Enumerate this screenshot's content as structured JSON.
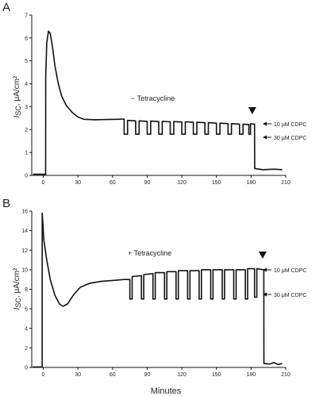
{
  "x_axis_title": "Minutes",
  "chart_data": [
    {
      "type": "line",
      "panel": "A",
      "annotation": "− Tetracycline",
      "ylabel_main": "I",
      "ylabel_sub": "SC",
      "ylabel_units": ", μA/cm²",
      "x_ticks": [
        0,
        30,
        60,
        90,
        120,
        150,
        180,
        210
      ],
      "y_ticks": [
        0,
        1,
        2,
        3,
        4,
        5,
        6,
        7
      ],
      "xlim": [
        -10,
        210
      ],
      "ylim": [
        0,
        7
      ],
      "marker_x": 181,
      "arrows": [
        {
          "label": "10 μM CDPC",
          "y": 2.25
        },
        {
          "label": "30 μM CDPC",
          "y": 1.7
        }
      ],
      "series": [
        {
          "values": [
            [
              -9,
              0.05
            ],
            [
              2,
              0.05
            ],
            [
              2.1,
              4.3
            ],
            [
              3,
              5.8
            ],
            [
              4.5,
              6.3
            ],
            [
              6,
              6.2
            ],
            [
              8,
              5.6
            ],
            [
              10,
              4.8
            ],
            [
              13,
              4.0
            ],
            [
              16,
              3.45
            ],
            [
              20,
              3.05
            ],
            [
              25,
              2.75
            ],
            [
              30,
              2.55
            ],
            [
              35,
              2.45
            ],
            [
              45,
              2.43
            ],
            [
              55,
              2.44
            ],
            [
              65,
              2.45
            ],
            [
              70,
              2.46
            ],
            [
              70,
              1.8
            ],
            [
              73,
              1.8
            ],
            [
              73,
              2.4
            ],
            [
              80,
              2.38
            ],
            [
              80,
              1.8
            ],
            [
              83,
              1.8
            ],
            [
              83,
              2.38
            ],
            [
              90,
              2.36
            ],
            [
              90,
              1.8
            ],
            [
              93,
              1.8
            ],
            [
              93,
              2.37
            ],
            [
              100,
              2.35
            ],
            [
              100,
              1.8
            ],
            [
              103,
              1.8
            ],
            [
              103,
              2.36
            ],
            [
              110,
              2.34
            ],
            [
              110,
              1.8
            ],
            [
              113,
              1.8
            ],
            [
              113,
              2.35
            ],
            [
              120,
              2.33
            ],
            [
              120,
              1.8
            ],
            [
              123,
              1.8
            ],
            [
              123,
              2.34
            ],
            [
              130,
              2.32
            ],
            [
              130,
              1.8
            ],
            [
              133,
              1.8
            ],
            [
              133,
              2.32
            ],
            [
              140,
              2.3
            ],
            [
              140,
              1.8
            ],
            [
              143,
              1.8
            ],
            [
              143,
              2.3
            ],
            [
              150,
              2.28
            ],
            [
              150,
              1.8
            ],
            [
              153,
              1.8
            ],
            [
              153,
              2.28
            ],
            [
              160,
              2.26
            ],
            [
              160,
              1.8
            ],
            [
              163,
              1.8
            ],
            [
              163,
              2.26
            ],
            [
              170,
              2.24
            ],
            [
              170,
              1.8
            ],
            [
              173,
              1.8
            ],
            [
              173,
              2.24
            ],
            [
              178,
              2.22
            ],
            [
              178,
              1.8
            ],
            [
              179.5,
              1.8
            ],
            [
              179.5,
              2.25
            ],
            [
              183,
              2.24
            ],
            [
              183.1,
              0.3
            ],
            [
              190,
              0.25
            ],
            [
              200,
              0.27
            ],
            [
              207,
              0.25
            ]
          ]
        }
      ]
    },
    {
      "type": "line",
      "panel": "B",
      "annotation": "+ Tetracycline",
      "ylabel_main": "I",
      "ylabel_sub": "SC",
      "ylabel_units": ", μA/cm²",
      "x_ticks": [
        0,
        30,
        60,
        90,
        120,
        150,
        180,
        210
      ],
      "y_ticks": [
        0,
        2,
        4,
        6,
        8,
        10,
        12,
        14,
        16
      ],
      "xlim": [
        -10,
        210
      ],
      "ylim": [
        0,
        16
      ],
      "marker_x": 190,
      "arrows": [
        {
          "label": "10 μM CDPC",
          "y": 10.0
        },
        {
          "label": "30 μM CDPC",
          "y": 7.2
        }
      ],
      "series": [
        {
          "values": [
            [
              -9,
              0.05
            ],
            [
              -1,
              0.05
            ],
            [
              -0.9,
              15.8
            ],
            [
              0.5,
              13.0
            ],
            [
              3,
              11.0
            ],
            [
              6,
              9.0
            ],
            [
              10,
              7.4
            ],
            [
              14,
              6.5
            ],
            [
              17,
              6.25
            ],
            [
              21,
              6.5
            ],
            [
              26,
              7.4
            ],
            [
              32,
              8.2
            ],
            [
              40,
              8.6
            ],
            [
              50,
              8.8
            ],
            [
              60,
              8.9
            ],
            [
              70,
              9.0
            ],
            [
              75,
              9.0
            ],
            [
              75,
              7.0
            ],
            [
              77,
              7.0
            ],
            [
              77,
              9.3
            ],
            [
              85,
              9.4
            ],
            [
              85,
              7.0
            ],
            [
              87,
              7.0
            ],
            [
              87,
              9.5
            ],
            [
              95,
              9.6
            ],
            [
              95,
              7.0
            ],
            [
              97,
              7.0
            ],
            [
              97,
              9.7
            ],
            [
              105,
              9.7
            ],
            [
              105,
              7.0
            ],
            [
              107,
              7.0
            ],
            [
              107,
              9.8
            ],
            [
              115,
              9.8
            ],
            [
              115,
              7.0
            ],
            [
              117,
              7.0
            ],
            [
              117,
              9.9
            ],
            [
              125,
              9.9
            ],
            [
              125,
              7.0
            ],
            [
              127,
              7.0
            ],
            [
              127,
              9.9
            ],
            [
              135,
              9.9
            ],
            [
              135,
              7.0
            ],
            [
              137,
              7.0
            ],
            [
              137,
              10.0
            ],
            [
              145,
              10.0
            ],
            [
              145,
              7.0
            ],
            [
              147,
              7.0
            ],
            [
              147,
              10.0
            ],
            [
              155,
              10.0
            ],
            [
              155,
              7.0
            ],
            [
              157,
              7.0
            ],
            [
              157,
              10.0
            ],
            [
              165,
              10.0
            ],
            [
              165,
              7.0
            ],
            [
              167,
              7.0
            ],
            [
              167,
              10.0
            ],
            [
              175,
              10.0
            ],
            [
              175,
              7.0
            ],
            [
              177,
              7.0
            ],
            [
              177,
              10.1
            ],
            [
              183,
              10.1
            ],
            [
              183,
              7.2
            ],
            [
              185,
              7.2
            ],
            [
              185,
              10.1
            ],
            [
              191,
              10.0
            ],
            [
              191.1,
              0.4
            ],
            [
              196,
              0.35
            ],
            [
              200,
              0.5
            ],
            [
              203,
              0.3
            ],
            [
              207,
              0.4
            ]
          ]
        }
      ]
    }
  ]
}
